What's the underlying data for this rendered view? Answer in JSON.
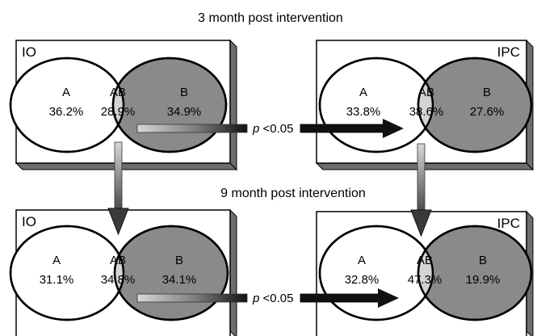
{
  "headings": {
    "top": "3 month post intervention",
    "middle": "9 month post intervention"
  },
  "panels": [
    {
      "id": "io-3m",
      "group": "IO",
      "labels": {
        "a": "A",
        "ab": "AB",
        "b": "B"
      },
      "values": {
        "a": "36.2%",
        "ab": "28.9%",
        "b": "34.9%"
      }
    },
    {
      "id": "ipc-3m",
      "group": "IPC",
      "labels": {
        "a": "A",
        "ab": "AB",
        "b": "B"
      },
      "values": {
        "a": "33.8%",
        "ab": "38.6%",
        "b": "27.6%"
      }
    },
    {
      "id": "io-9m",
      "group": "IO",
      "labels": {
        "a": "A",
        "ab": "AB",
        "b": "B"
      },
      "values": {
        "a": "31.1%",
        "ab": "34.8%",
        "b": "34.1%"
      }
    },
    {
      "id": "ipc-9m",
      "group": "IPC",
      "labels": {
        "a": "A",
        "ab": "AB",
        "b": "B"
      },
      "values": {
        "a": "32.8%",
        "ab": "47.3%",
        "b": "19.9%"
      }
    }
  ],
  "comparisons": [
    {
      "p_symbol": "p",
      "p_value": " <0.05"
    },
    {
      "p_symbol": "p",
      "p_value": " <0.05"
    }
  ],
  "colors": {
    "circle_a": "#ffffff",
    "circle_b": "#8a8a8a",
    "overlap": "#d4d4d4",
    "panel_face": "#ffffff",
    "panel_side": "#6e6e6e",
    "outline": "#000000",
    "arrow_dark": "#111111"
  }
}
